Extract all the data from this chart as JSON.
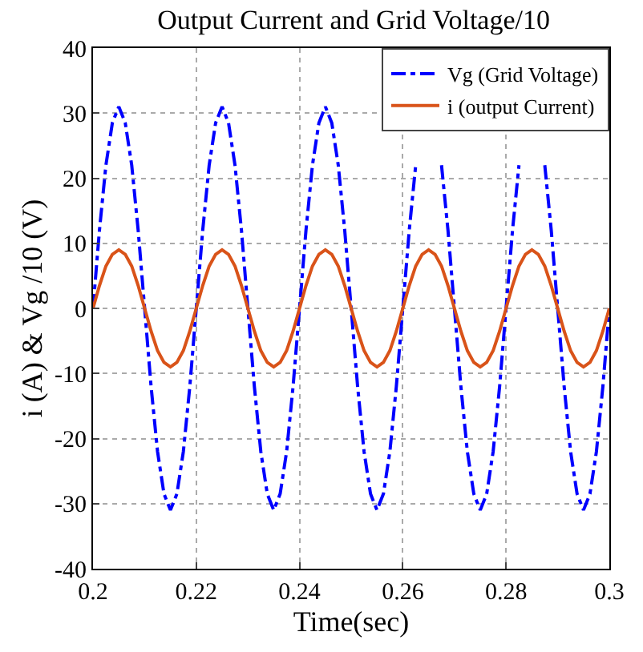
{
  "chart_data": {
    "type": "line",
    "title": "Output Current and Grid Voltage/10",
    "xlabel": "Time(sec)",
    "ylabel": "i (A) & Vg /10 (V)",
    "x": [
      0.2,
      0.20125,
      0.2025,
      0.20375,
      0.205,
      0.20625,
      0.2075,
      0.20875,
      0.21,
      0.21125,
      0.2125,
      0.21375,
      0.215,
      0.21625,
      0.2175,
      0.21875,
      0.22,
      0.22125,
      0.2225,
      0.22375,
      0.225,
      0.22625,
      0.2275,
      0.22875,
      0.23,
      0.23125,
      0.2325,
      0.23375,
      0.235,
      0.23625,
      0.2375,
      0.23875,
      0.24,
      0.24125,
      0.2425,
      0.24375,
      0.245,
      0.24625,
      0.2475,
      0.24875,
      0.25,
      0.25125,
      0.2525,
      0.25375,
      0.255,
      0.25625,
      0.2575,
      0.25875,
      0.26,
      0.26125,
      0.2625,
      0.26375,
      0.265,
      0.26625,
      0.2675,
      0.26875,
      0.27,
      0.27125,
      0.2725,
      0.27375,
      0.275,
      0.27625,
      0.2775,
      0.27875,
      0.28,
      0.28125,
      0.2825,
      0.28375,
      0.285,
      0.28625,
      0.2875,
      0.28875,
      0.29,
      0.29125,
      0.2925,
      0.29375,
      0.295,
      0.29625,
      0.2975,
      0.29875,
      0.3
    ],
    "series": [
      {
        "name": "Vg (Grid Voltage)",
        "color": "#0000ff",
        "line_style": "dashdot",
        "values": [
          0,
          12,
          22,
          28.5,
          31,
          28.5,
          22,
          12,
          0,
          -12,
          -22,
          -28.5,
          -31,
          -28.5,
          -22,
          -12,
          0,
          12,
          22,
          28.5,
          31,
          28.5,
          22,
          12,
          0,
          -12,
          -22,
          -28.5,
          -31,
          -28.5,
          -22,
          -12,
          0,
          12,
          22,
          28.5,
          31,
          28.5,
          22,
          12,
          0,
          -12,
          -22,
          -28.5,
          -31,
          -28.5,
          -22,
          -12,
          0,
          12,
          22,
          null,
          null,
          null,
          22,
          12,
          0,
          -12,
          -22,
          -28.5,
          -31,
          -28.5,
          -22,
          -12,
          0,
          12,
          22,
          null,
          null,
          null,
          22,
          12,
          0,
          -12,
          -22,
          -28.5,
          -31,
          -28.5,
          -22,
          -12,
          0
        ]
      },
      {
        "name": "i (output Current)",
        "color": "#d95319",
        "line_style": "solid",
        "values": [
          0,
          3.5,
          6.5,
          8.3,
          9,
          8.3,
          6.5,
          3.5,
          0,
          -3.5,
          -6.5,
          -8.3,
          -9,
          -8.3,
          -6.5,
          -3.5,
          0,
          3.5,
          6.5,
          8.3,
          9,
          8.3,
          6.5,
          3.5,
          0,
          -3.5,
          -6.5,
          -8.3,
          -9,
          -8.3,
          -6.5,
          -3.5,
          0,
          3.5,
          6.5,
          8.3,
          9,
          8.3,
          6.5,
          3.5,
          0,
          -3.5,
          -6.5,
          -8.3,
          -9,
          -8.3,
          -6.5,
          -3.5,
          0,
          3.5,
          6.5,
          8.3,
          9,
          8.3,
          6.5,
          3.5,
          0,
          -3.5,
          -6.5,
          -8.3,
          -9,
          -8.3,
          -6.5,
          -3.5,
          0,
          3.5,
          6.5,
          8.3,
          9,
          8.3,
          6.5,
          3.5,
          0,
          -3.5,
          -6.5,
          -8.3,
          -9,
          -8.3,
          -6.5,
          -3.5,
          0
        ]
      }
    ],
    "xlim": [
      0.2,
      0.3
    ],
    "xticks": [
      0.2,
      0.22,
      0.24,
      0.26,
      0.28,
      0.3
    ],
    "ylim": [
      -40,
      40
    ],
    "yticks": [
      -40,
      -30,
      -20,
      -10,
      0,
      10,
      20,
      30,
      40
    ],
    "grid": true,
    "legend": "top right"
  }
}
